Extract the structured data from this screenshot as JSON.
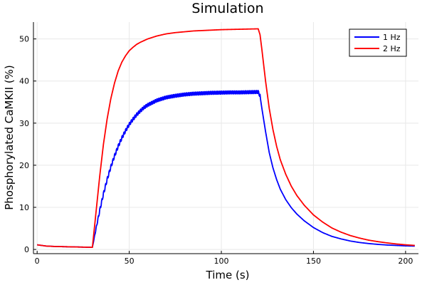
{
  "chart_data": {
    "type": "line",
    "title": "Simulation",
    "xlabel": "Time (s)",
    "ylabel": "Phosphorylated CaMKII (%)",
    "xlim": [
      -2,
      207
    ],
    "ylim": [
      -1,
      54
    ],
    "xticks": [
      0,
      50,
      100,
      150,
      200
    ],
    "yticks": [
      0,
      10,
      20,
      30,
      40,
      50
    ],
    "grid": true,
    "legend": "top-right",
    "series": [
      {
        "name": "1 Hz",
        "color": "#0000ff",
        "oscillating": true,
        "x": [
          0,
          5,
          10,
          15,
          20,
          25,
          30,
          32,
          34,
          36,
          38,
          40,
          42,
          44,
          46,
          48,
          50,
          52,
          54,
          56,
          58,
          60,
          65,
          70,
          75,
          80,
          85,
          90,
          95,
          100,
          105,
          110,
          115,
          120,
          121,
          122,
          124,
          126,
          128,
          130,
          132,
          135,
          138,
          141,
          145,
          150,
          155,
          160,
          165,
          170,
          175,
          180,
          185,
          190,
          195,
          200,
          205
        ],
        "y": [
          1.1,
          0.8,
          0.7,
          0.65,
          0.6,
          0.55,
          0.5,
          5.0,
          9.3,
          13.2,
          16.6,
          19.6,
          22.2,
          24.5,
          26.5,
          28.2,
          29.7,
          30.9,
          32.0,
          32.9,
          33.7,
          34.3,
          35.4,
          36.1,
          36.5,
          36.8,
          37.0,
          37.1,
          37.2,
          37.25,
          37.3,
          37.3,
          37.35,
          37.4,
          36.5,
          33.5,
          28.0,
          23.0,
          19.4,
          16.6,
          14.3,
          11.8,
          9.9,
          8.4,
          6.8,
          5.2,
          4.0,
          3.1,
          2.5,
          2.0,
          1.65,
          1.4,
          1.2,
          1.05,
          0.95,
          0.85,
          0.8
        ]
      },
      {
        "name": "2 Hz",
        "color": "#ff0000",
        "oscillating": false,
        "x": [
          0,
          5,
          10,
          15,
          20,
          25,
          30,
          32,
          34,
          36,
          38,
          40,
          42,
          44,
          46,
          48,
          50,
          52,
          54,
          56,
          58,
          60,
          65,
          70,
          75,
          80,
          85,
          90,
          95,
          100,
          105,
          110,
          115,
          120,
          121,
          122,
          124,
          126,
          128,
          130,
          132,
          135,
          138,
          141,
          145,
          150,
          155,
          160,
          165,
          170,
          175,
          180,
          185,
          190,
          195,
          200,
          205
        ],
        "y": [
          1.1,
          0.8,
          0.7,
          0.65,
          0.6,
          0.55,
          0.5,
          9.0,
          17.5,
          25.0,
          31.0,
          35.8,
          39.5,
          42.4,
          44.5,
          46.0,
          47.2,
          48.0,
          48.7,
          49.2,
          49.6,
          50.0,
          50.7,
          51.2,
          51.5,
          51.7,
          51.9,
          52.0,
          52.1,
          52.2,
          52.25,
          52.3,
          52.35,
          52.4,
          51.0,
          47.5,
          40.0,
          33.5,
          28.5,
          24.5,
          21.3,
          17.8,
          15.0,
          12.8,
          10.5,
          8.2,
          6.5,
          5.1,
          4.1,
          3.3,
          2.7,
          2.2,
          1.85,
          1.55,
          1.3,
          1.1,
          0.95
        ]
      }
    ]
  }
}
